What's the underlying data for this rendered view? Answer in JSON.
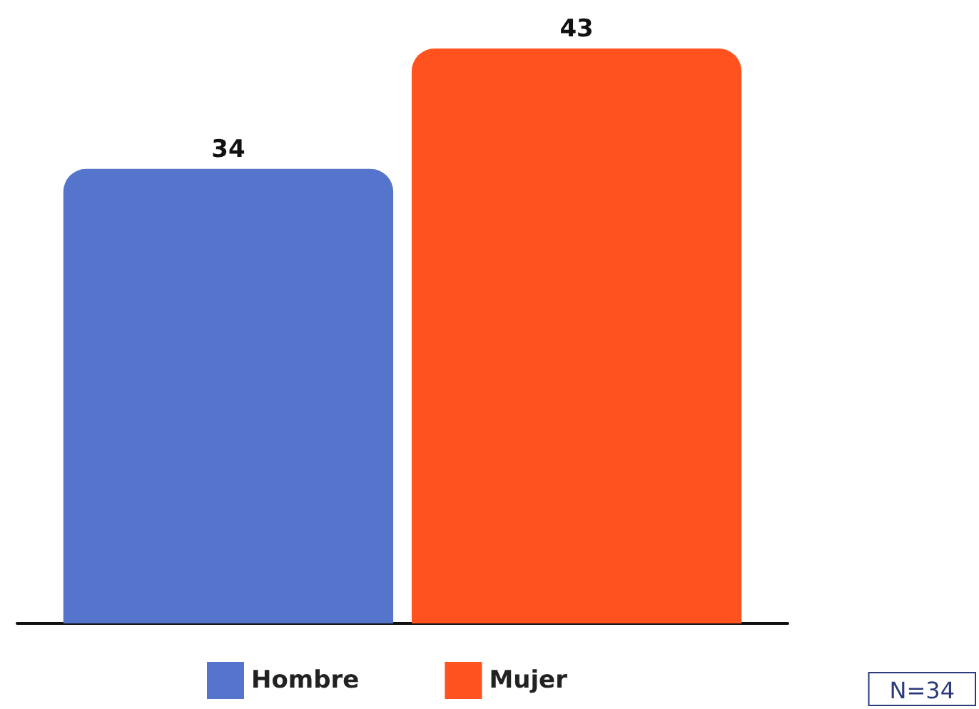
{
  "chart_data": {
    "type": "bar",
    "categories": [
      null
    ],
    "series": [
      {
        "name": "Hombre",
        "color": "#5574cc",
        "values": [
          34
        ]
      },
      {
        "name": "Mujer",
        "color": "#ff521e",
        "values": [
          43
        ]
      }
    ],
    "data_labels": true,
    "legend": "bottom",
    "annotations": [
      "N=34"
    ]
  }
}
